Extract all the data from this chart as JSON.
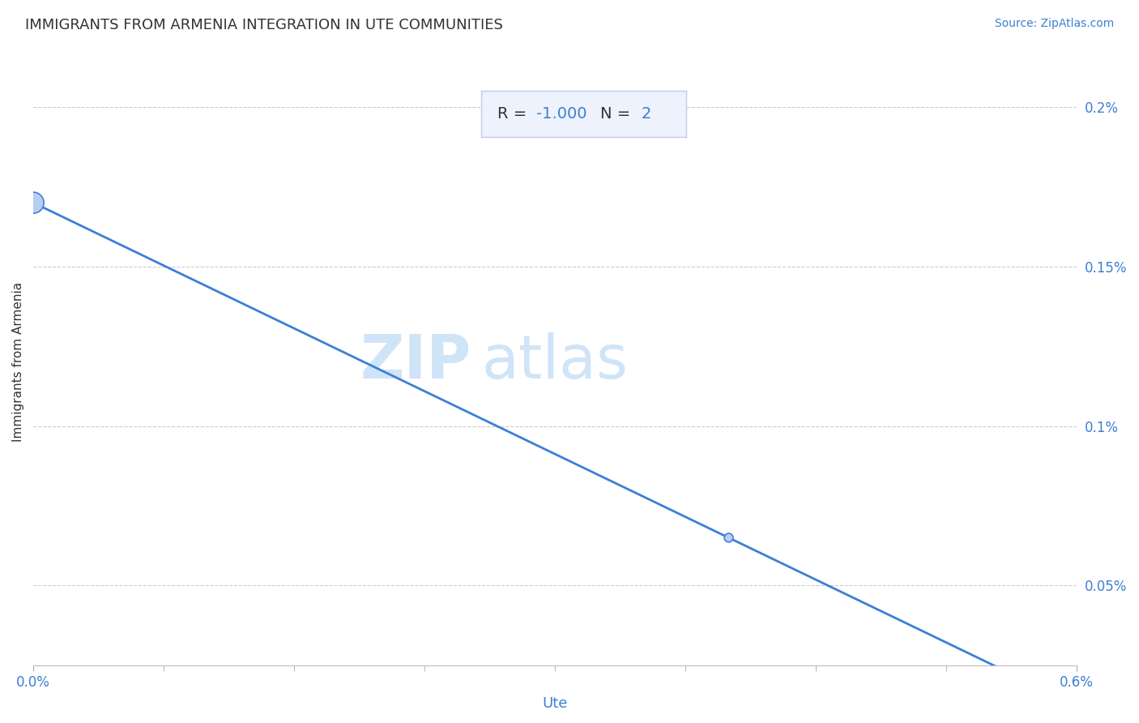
{
  "title": "IMMIGRANTS FROM ARMENIA INTEGRATION IN UTE COMMUNITIES",
  "source": "Source: ZipAtlas.com",
  "xlabel": "Ute",
  "ylabel": "Immigrants from Armenia",
  "R_value": "-1.000",
  "N_value": "2",
  "watermark_zip": "ZIP",
  "watermark_atlas": "atlas",
  "x_data": [
    0.0,
    0.004
  ],
  "y_data": [
    0.0017,
    0.00065
  ],
  "bubble_sizes": [
    350,
    60
  ],
  "xlim": [
    0.0,
    0.006
  ],
  "ylim": [
    0.00025,
    0.00215
  ],
  "x_ticks_major": [
    0.0,
    0.006
  ],
  "x_tick_labels": [
    "0.0%",
    "0.6%"
  ],
  "x_ticks_minor": [
    0.0,
    0.00075,
    0.0015,
    0.00225,
    0.003,
    0.00375,
    0.0045,
    0.00525,
    0.006
  ],
  "y_ticks": [
    0.0005,
    0.001,
    0.0015,
    0.002
  ],
  "y_tick_labels": [
    "0.05%",
    "0.1%",
    "0.15%",
    "0.2%"
  ],
  "grid_color": "#cccccc",
  "line_color": "#3d7fd4",
  "bubble_color": "#b8d0f0",
  "bubble_edge_color": "#3d7fd4",
  "text_color": "#3d7fd4",
  "title_color": "#333333",
  "background_color": "#ffffff",
  "stat_box_bg": "#eef2fc",
  "stat_box_edge": "#c0cce8",
  "R_label_color": "#333333",
  "watermark_color": "#d0e4f8"
}
